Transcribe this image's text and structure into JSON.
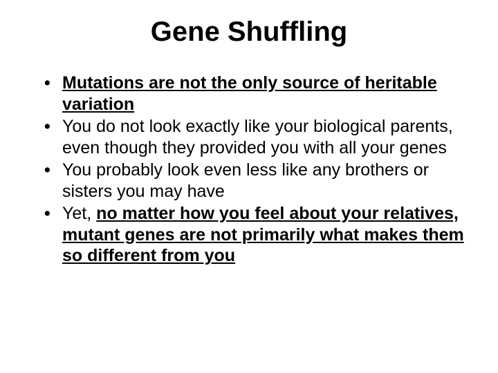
{
  "slide": {
    "title": "Gene Shuffling",
    "bullets": [
      {
        "segments": [
          {
            "text": "Mutations are not the only source of heritable variation",
            "style": "bold-underline"
          }
        ]
      },
      {
        "segments": [
          {
            "text": "You do not look exactly like your biological parents, even though they provided you with all your genes",
            "style": ""
          }
        ]
      },
      {
        "segments": [
          {
            "text": "You probably look even less like any brothers or sisters you may have",
            "style": ""
          }
        ]
      },
      {
        "segments": [
          {
            "text": "Yet, ",
            "style": ""
          },
          {
            "text": "no matter how you feel about your relatives, mutant genes are not primarily what makes them so different from you",
            "style": "bold-underline"
          }
        ]
      }
    ],
    "styling": {
      "background_color": "#ffffff",
      "text_color": "#000000",
      "title_fontsize": 40,
      "bullet_fontsize": 25,
      "font_family": "Arial"
    }
  }
}
